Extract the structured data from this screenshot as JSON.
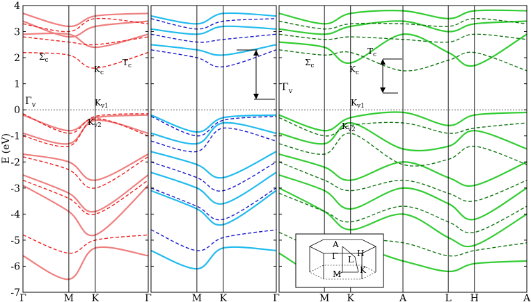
{
  "chart_data": {
    "type": "line",
    "ylabel": "E (eV)",
    "ylim": [
      -7,
      4
    ],
    "yticks": [
      "-7",
      "-6",
      "-5",
      "-4",
      "-3",
      "-2",
      "-1",
      "0",
      "1",
      "2",
      "3",
      "4"
    ],
    "fermi_level": 0,
    "panels": [
      {
        "color": "#ee7f7f",
        "dashed_color": "#ee2020",
        "kpoints": [
          "Γ",
          "M",
          "K",
          "Γ"
        ],
        "kpos": [
          0,
          0.5774,
          0.9107,
          1.5774
        ],
        "bands": [
          {
            "style": "solid",
            "e": [
              -0.2,
              -0.8,
              -0.3,
              -0.2
            ]
          },
          {
            "style": "solid",
            "e": [
              -0.9,
              -1.3,
              -0.4,
              -0.9
            ]
          },
          {
            "style": "solid",
            "e": [
              -1.7,
              -2.0,
              -2.7,
              -1.7
            ]
          },
          {
            "style": "solid",
            "e": [
              -2.5,
              -3.2,
              -3.9,
              -2.5
            ]
          },
          {
            "style": "solid",
            "e": [
              -2.9,
              -3.9,
              -4.8,
              -2.9
            ]
          },
          {
            "style": "solid",
            "e": [
              -5.6,
              -6.5,
              -5.3,
              -5.6
            ]
          },
          {
            "style": "solid",
            "e": [
              2.9,
              2.9,
              2.4,
              2.9
            ]
          },
          {
            "style": "solid",
            "e": [
              3.4,
              2.8,
              3.2,
              3.4
            ]
          },
          {
            "style": "solid",
            "e": [
              3.7,
              3.2,
              3.6,
              3.7
            ]
          },
          {
            "style": "dashed",
            "e": [
              -0.15,
              -0.9,
              -0.25,
              -0.15
            ]
          },
          {
            "style": "dashed",
            "e": [
              -1.0,
              -1.4,
              -0.35,
              -1.0
            ]
          },
          {
            "style": "dashed",
            "e": [
              -1.8,
              -2.3,
              -3.0,
              -1.8
            ]
          },
          {
            "style": "dashed",
            "e": [
              -2.7,
              -3.4,
              -4.0,
              -2.7
            ]
          },
          {
            "style": "dashed",
            "e": [
              -4.8,
              -5.5,
              -5.0,
              -4.8
            ]
          },
          {
            "style": "dashed",
            "e": [
              2.2,
              2.1,
              1.6,
              2.2
            ]
          },
          {
            "style": "dashed",
            "e": [
              2.8,
              2.6,
              2.5,
              2.8
            ]
          },
          {
            "style": "dashed",
            "e": [
              3.3,
              3.0,
              3.5,
              3.3
            ]
          }
        ]
      },
      {
        "color": "#22bbee",
        "dashed_color": "#1a1acc",
        "kpoints": [
          "Γ",
          "M",
          "K",
          "Γ"
        ],
        "kpos": [
          0,
          0.5774,
          0.9107,
          1.5774
        ],
        "bands": [
          {
            "style": "solid",
            "e": [
              -0.2,
              -0.85,
              -0.3,
              -0.2
            ]
          },
          {
            "style": "solid",
            "e": [
              -0.9,
              -1.3,
              -0.5,
              -0.9
            ]
          },
          {
            "style": "solid",
            "e": [
              -1.6,
              -2.1,
              -2.6,
              -1.6
            ]
          },
          {
            "style": "solid",
            "e": [
              -2.4,
              -3.0,
              -3.6,
              -2.4
            ]
          },
          {
            "style": "solid",
            "e": [
              -3.1,
              -3.8,
              -4.4,
              -3.1
            ]
          },
          {
            "style": "solid",
            "e": [
              -5.4,
              -6.1,
              -5.3,
              -5.4
            ]
          },
          {
            "style": "solid",
            "e": [
              2.5,
              2.3,
              2.1,
              2.5
            ]
          },
          {
            "style": "solid",
            "e": [
              3.1,
              2.9,
              3.2,
              3.1
            ]
          },
          {
            "style": "solid",
            "e": [
              3.6,
              3.3,
              3.7,
              3.6
            ]
          },
          {
            "style": "dashed",
            "e": [
              -0.25,
              -1.0,
              -0.4,
              -0.25
            ]
          },
          {
            "style": "dashed",
            "e": [
              -1.2,
              -1.6,
              -0.7,
              -1.2
            ]
          },
          {
            "style": "dashed",
            "e": [
              -2.0,
              -2.6,
              -3.1,
              -2.0
            ]
          },
          {
            "style": "dashed",
            "e": [
              -3.0,
              -3.7,
              -4.2,
              -3.0
            ]
          },
          {
            "style": "dashed",
            "e": [
              -4.6,
              -5.4,
              -4.9,
              -4.6
            ]
          },
          {
            "style": "dashed",
            "e": [
              2.3,
              2.0,
              1.65,
              2.3
            ]
          },
          {
            "style": "dashed",
            "e": [
              2.9,
              2.6,
              2.7,
              2.9
            ]
          },
          {
            "style": "dashed",
            "e": [
              3.5,
              3.1,
              3.4,
              3.5
            ]
          }
        ]
      },
      {
        "color": "#33cc33",
        "dashed_color": "#117711",
        "kpoints": [
          "Γ",
          "M",
          "K",
          "A",
          "L",
          "H",
          "A"
        ],
        "kpos": [
          0,
          0.5774,
          0.9107,
          1.5774,
          2.1548,
          2.4881,
          3.1548
        ],
        "bands": [
          {
            "style": "solid",
            "e": [
              -0.2,
              -0.8,
              -0.3,
              -0.1,
              -0.6,
              -0.2,
              -0.1
            ]
          },
          {
            "style": "solid",
            "e": [
              -0.9,
              -1.3,
              -0.5,
              -1.5,
              -1.4,
              -0.8,
              -1.5
            ]
          },
          {
            "style": "solid",
            "e": [
              -1.7,
              -2.2,
              -2.7,
              -2.0,
              -2.6,
              -2.9,
              -2.0
            ]
          },
          {
            "style": "solid",
            "e": [
              -2.5,
              -3.1,
              -3.8,
              -3.0,
              -3.6,
              -4.2,
              -3.0
            ]
          },
          {
            "style": "solid",
            "e": [
              -3.0,
              -3.9,
              -4.6,
              -4.0,
              -4.9,
              -5.2,
              -4.0
            ]
          },
          {
            "style": "solid",
            "e": [
              -5.5,
              -6.4,
              -5.3,
              -5.8,
              -6.2,
              -5.9,
              -5.8
            ]
          },
          {
            "style": "solid",
            "e": [
              2.6,
              2.4,
              1.8,
              2.9,
              2.2,
              1.7,
              2.9
            ]
          },
          {
            "style": "solid",
            "e": [
              3.1,
              2.9,
              3.2,
              3.4,
              3.0,
              3.3,
              3.4
            ]
          },
          {
            "style": "solid",
            "e": [
              3.7,
              3.3,
              3.7,
              3.8,
              3.5,
              3.8,
              3.8
            ]
          },
          {
            "style": "dashed",
            "e": [
              -0.3,
              -1.0,
              -0.6,
              -0.5,
              -0.9,
              -0.7,
              -0.5
            ]
          },
          {
            "style": "dashed",
            "e": [
              -1.3,
              -1.7,
              -0.9,
              -2.1,
              -1.9,
              -1.4,
              -2.1
            ]
          },
          {
            "style": "dashed",
            "e": [
              -2.0,
              -2.7,
              -3.1,
              -2.7,
              -3.2,
              -3.5,
              -2.7
            ]
          },
          {
            "style": "dashed",
            "e": [
              -3.2,
              -3.9,
              -4.3,
              -3.7,
              -4.3,
              -4.7,
              -3.7
            ]
          },
          {
            "style": "dashed",
            "e": [
              -4.7,
              -5.4,
              -5.0,
              -5.1,
              -5.6,
              -5.4,
              -5.1
            ]
          },
          {
            "style": "dashed",
            "e": [
              2.3,
              2.1,
              2.2,
              1.5,
              1.9,
              2.2,
              1.5
            ]
          },
          {
            "style": "dashed",
            "e": [
              2.9,
              2.7,
              2.8,
              2.7,
              2.6,
              2.9,
              2.7
            ]
          },
          {
            "style": "dashed",
            "e": [
              3.4,
              3.1,
              3.3,
              3.3,
              3.2,
              3.5,
              3.3
            ]
          }
        ]
      }
    ],
    "annotations": {
      "panel1": {
        "sigma": "Σ",
        "sigma_sub": "c",
        "kc": "K",
        "kc_sub": "c",
        "tc": "T",
        "tc_sub": "c",
        "gamma": "Γ",
        "gamma_sub": "v",
        "kv1": "K",
        "kv1_sub": "v1",
        "kv2": "K",
        "kv2_sub": "v2"
      },
      "panel3": {
        "sigma": "Σ",
        "sigma_sub": "c",
        "kc": "K",
        "kc_sub": "c",
        "tc": "T",
        "tc_sub": "c",
        "gamma": "Γ",
        "gamma_sub": "v",
        "kv1": "K",
        "kv1_sub": "v1",
        "kv2": "K",
        "kv2_sub": "v2"
      }
    },
    "bz_inset": {
      "labels": [
        "A",
        "H",
        "Γ",
        "L",
        "M",
        "K"
      ]
    }
  }
}
